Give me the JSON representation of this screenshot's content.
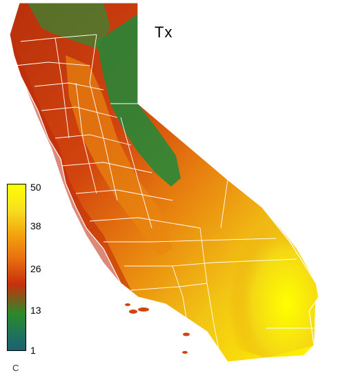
{
  "map": {
    "title": "Tx",
    "unit": "C",
    "legend": {
      "ticks": [
        "50",
        "38",
        "26",
        "13",
        "1"
      ],
      "colors": {
        "high": "#ffff00",
        "mid_high": "#f0a000",
        "mid": "#d43a10",
        "mid_low": "#228b22",
        "low": "#1e6e6e"
      }
    },
    "colors": {
      "outline": "#ffffff",
      "desert": "#f4e01a",
      "valley": "#e88a10",
      "coast": "#c8300c",
      "mountain": "#1e8a3a"
    }
  }
}
